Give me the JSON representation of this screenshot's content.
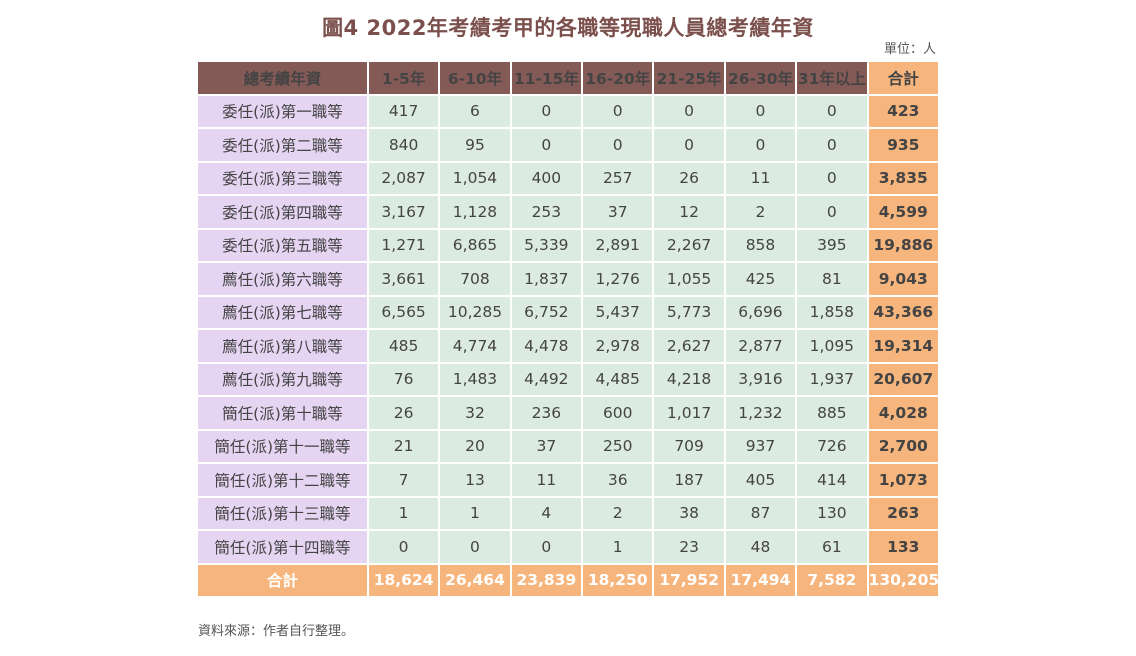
{
  "title": "圖4  2022年考績考甲的各職等現職人員總考績年資",
  "unit": "單位：人",
  "source": "資料來源：作者自行整理。",
  "chart_data": {
    "type": "table",
    "title": "圖4  2022年考績考甲的各職等現職人員總考績年資",
    "corner_header": "總考績年資",
    "columns": [
      "1-5年",
      "6-10年",
      "11-15年",
      "16-20年",
      "21-25年",
      "26-30年",
      "31年以上"
    ],
    "total_header": "合計",
    "rows": [
      {
        "label": "委任(派)第一職等",
        "values": [
          "417",
          "6",
          "0",
          "0",
          "0",
          "0",
          "0"
        ],
        "total": "423"
      },
      {
        "label": "委任(派)第二職等",
        "values": [
          "840",
          "95",
          "0",
          "0",
          "0",
          "0",
          "0"
        ],
        "total": "935"
      },
      {
        "label": "委任(派)第三職等",
        "values": [
          "2,087",
          "1,054",
          "400",
          "257",
          "26",
          "11",
          "0"
        ],
        "total": "3,835"
      },
      {
        "label": "委任(派)第四職等",
        "values": [
          "3,167",
          "1,128",
          "253",
          "37",
          "12",
          "2",
          "0"
        ],
        "total": "4,599"
      },
      {
        "label": "委任(派)第五職等",
        "values": [
          "1,271",
          "6,865",
          "5,339",
          "2,891",
          "2,267",
          "858",
          "395"
        ],
        "total": "19,886"
      },
      {
        "label": "薦任(派)第六職等",
        "values": [
          "3,661",
          "708",
          "1,837",
          "1,276",
          "1,055",
          "425",
          "81"
        ],
        "total": "9,043"
      },
      {
        "label": "薦任(派)第七職等",
        "values": [
          "6,565",
          "10,285",
          "6,752",
          "5,437",
          "5,773",
          "6,696",
          "1,858"
        ],
        "total": "43,366"
      },
      {
        "label": "薦任(派)第八職等",
        "values": [
          "485",
          "4,774",
          "4,478",
          "2,978",
          "2,627",
          "2,877",
          "1,095"
        ],
        "total": "19,314"
      },
      {
        "label": "薦任(派)第九職等",
        "values": [
          "76",
          "1,483",
          "4,492",
          "4,485",
          "4,218",
          "3,916",
          "1,937"
        ],
        "total": "20,607"
      },
      {
        "label": "簡任(派)第十職等",
        "values": [
          "26",
          "32",
          "236",
          "600",
          "1,017",
          "1,232",
          "885"
        ],
        "total": "4,028"
      },
      {
        "label": "簡任(派)第十一職等",
        "values": [
          "21",
          "20",
          "37",
          "250",
          "709",
          "937",
          "726"
        ],
        "total": "2,700"
      },
      {
        "label": "簡任(派)第十二職等",
        "values": [
          "7",
          "13",
          "11",
          "36",
          "187",
          "405",
          "414"
        ],
        "total": "1,073"
      },
      {
        "label": "簡任(派)第十三職等",
        "values": [
          "1",
          "1",
          "4",
          "2",
          "38",
          "87",
          "130"
        ],
        "total": "263"
      },
      {
        "label": "簡任(派)第十四職等",
        "values": [
          "0",
          "0",
          "0",
          "1",
          "23",
          "48",
          "61"
        ],
        "total": "133"
      }
    ],
    "summary": {
      "label": "合計",
      "values": [
        "18,624",
        "26,464",
        "23,839",
        "18,250",
        "17,952",
        "17,494",
        "7,582"
      ],
      "total": "130,205"
    },
    "colors": {
      "header": "#845a57",
      "total": "#f6b57c",
      "row_label": "#e6d5f2",
      "cell": "#dcebe2",
      "title": "#7b4f4b"
    }
  }
}
